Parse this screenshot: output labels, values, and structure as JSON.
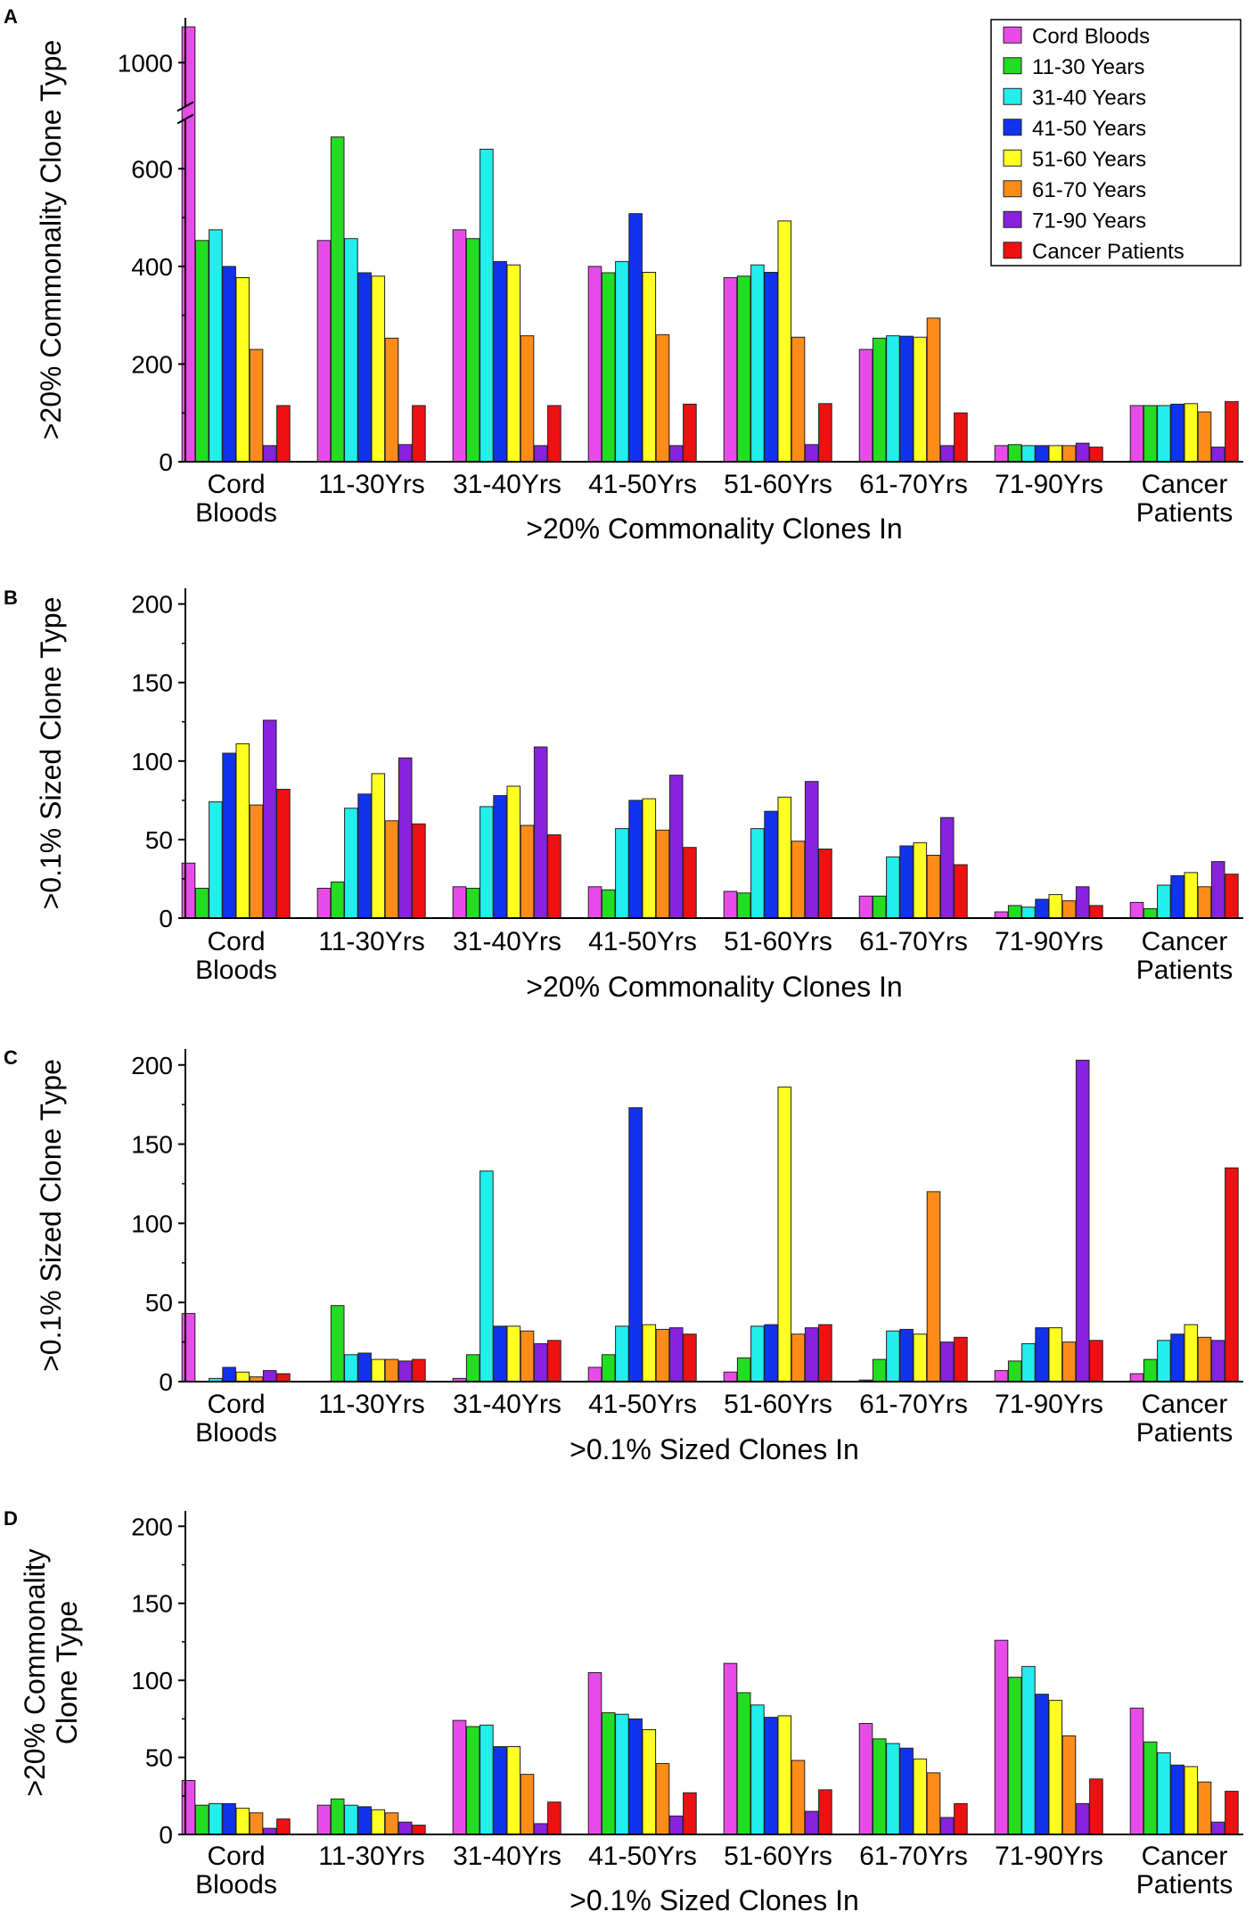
{
  "colors": {
    "Cord Bloods": "#e84ce8",
    "11-30 Years": "#22dd22",
    "31-40 Years": "#22eeee",
    "41-50 Years": "#1133ee",
    "51-60 Years": "#ffff22",
    "61-70 Years": "#ff8c1a",
    "71-90 Years": "#8822dd",
    "Cancer Patients": "#ee1111"
  },
  "chart_data": [
    {
      "panel": "A",
      "type": "bar",
      "title": "",
      "xlabel": ">20% Commonality Clones In",
      "ylabel": [
        ">20% Commonality Clone Type"
      ],
      "ylim": [
        0,
        1050
      ],
      "axis_break": {
        "from": 700,
        "to": 950
      },
      "yticks": [
        0,
        200,
        400,
        600,
        1000
      ],
      "categories": [
        [
          "Cord",
          "Bloods"
        ],
        [
          "11-30Yrs"
        ],
        [
          "31-40Yrs"
        ],
        [
          "41-50Yrs"
        ],
        [
          "51-60Yrs"
        ],
        [
          "61-70Yrs"
        ],
        [
          "71-90Yrs"
        ],
        [
          "Cancer",
          "Patients"
        ]
      ],
      "legend": {
        "position": "top-right",
        "entries": [
          "Cord Bloods",
          "11-30 Years",
          "31-40 Years",
          "41-50 Years",
          "51-60 Years",
          "61-70 Years",
          "71-90 Years",
          "Cancer Patients"
        ]
      },
      "series": [
        {
          "name": "Cord Bloods",
          "values": [
            1040,
            453,
            475,
            400,
            377,
            230,
            33,
            115
          ]
        },
        {
          "name": "11-30 Years",
          "values": [
            453,
            665,
            457,
            387,
            380,
            253,
            35,
            115
          ]
        },
        {
          "name": "31-40 Years",
          "values": [
            475,
            457,
            640,
            410,
            403,
            258,
            33,
            115
          ]
        },
        {
          "name": "41-50 Years",
          "values": [
            400,
            387,
            410,
            508,
            388,
            257,
            33,
            118
          ]
        },
        {
          "name": "51-60 Years",
          "values": [
            377,
            380,
            403,
            388,
            493,
            255,
            33,
            119
          ]
        },
        {
          "name": "61-70 Years",
          "values": [
            230,
            253,
            258,
            260,
            255,
            294,
            33,
            102
          ]
        },
        {
          "name": "71-90 Years",
          "values": [
            33,
            35,
            33,
            33,
            35,
            33,
            38,
            30
          ]
        },
        {
          "name": "Cancer Patients",
          "values": [
            115,
            115,
            115,
            118,
            119,
            100,
            30,
            123
          ]
        }
      ]
    },
    {
      "panel": "B",
      "type": "bar",
      "title": "",
      "xlabel": ">20% Commonality Clones In",
      "ylabel": [
        ">0.1% Sized Clone Type"
      ],
      "ylim": [
        0,
        210
      ],
      "yticks": [
        0,
        50,
        100,
        150,
        200
      ],
      "categories": [
        [
          "Cord",
          "Bloods"
        ],
        [
          "11-30Yrs"
        ],
        [
          "31-40Yrs"
        ],
        [
          "41-50Yrs"
        ],
        [
          "51-60Yrs"
        ],
        [
          "61-70Yrs"
        ],
        [
          "71-90Yrs"
        ],
        [
          "Cancer",
          "Patients"
        ]
      ],
      "series": [
        {
          "name": "Cord Bloods",
          "values": [
            35,
            19,
            20,
            20,
            17,
            14,
            4,
            10
          ]
        },
        {
          "name": "11-30 Years",
          "values": [
            19,
            23,
            19,
            18,
            16,
            14,
            8,
            6
          ]
        },
        {
          "name": "31-40 Years",
          "values": [
            74,
            70,
            71,
            57,
            57,
            39,
            7,
            21
          ]
        },
        {
          "name": "41-50 Years",
          "values": [
            105,
            79,
            78,
            75,
            68,
            46,
            12,
            27
          ]
        },
        {
          "name": "51-60 Years",
          "values": [
            111,
            92,
            84,
            76,
            77,
            48,
            15,
            29
          ]
        },
        {
          "name": "61-70 Years",
          "values": [
            72,
            62,
            59,
            56,
            49,
            40,
            11,
            20
          ]
        },
        {
          "name": "71-90 Years",
          "values": [
            126,
            102,
            109,
            91,
            87,
            64,
            20,
            36
          ]
        },
        {
          "name": "Cancer Patients",
          "values": [
            82,
            60,
            53,
            45,
            44,
            34,
            8,
            28
          ]
        }
      ]
    },
    {
      "panel": "C",
      "type": "bar",
      "title": "",
      "xlabel": ">0.1% Sized Clones In",
      "ylabel": [
        ">0.1% Sized Clone Type"
      ],
      "ylim": [
        0,
        210
      ],
      "yticks": [
        0,
        50,
        100,
        150,
        200
      ],
      "categories": [
        [
          "Cord",
          "Bloods"
        ],
        [
          "11-30Yrs"
        ],
        [
          "31-40Yrs"
        ],
        [
          "41-50Yrs"
        ],
        [
          "51-60Yrs"
        ],
        [
          "61-70Yrs"
        ],
        [
          "71-90Yrs"
        ],
        [
          "Cancer",
          "Patients"
        ]
      ],
      "series": [
        {
          "name": "Cord Bloods",
          "values": [
            43,
            0,
            2,
            9,
            6,
            1,
            7,
            5
          ]
        },
        {
          "name": "11-30 Years",
          "values": [
            0,
            48,
            17,
            17,
            15,
            14,
            13,
            14
          ]
        },
        {
          "name": "31-40 Years",
          "values": [
            2,
            17,
            133,
            35,
            35,
            32,
            24,
            26
          ]
        },
        {
          "name": "41-50 Years",
          "values": [
            9,
            18,
            35,
            173,
            36,
            33,
            34,
            30
          ]
        },
        {
          "name": "51-60 Years",
          "values": [
            6,
            14,
            35,
            36,
            186,
            30,
            34,
            36
          ]
        },
        {
          "name": "61-70 Years",
          "values": [
            3,
            14,
            32,
            33,
            30,
            120,
            25,
            28
          ]
        },
        {
          "name": "71-90 Years",
          "values": [
            7,
            13,
            24,
            34,
            34,
            25,
            203,
            26
          ]
        },
        {
          "name": "Cancer Patients",
          "values": [
            5,
            14,
            26,
            30,
            36,
            28,
            26,
            135
          ]
        }
      ]
    },
    {
      "panel": "D",
      "type": "bar",
      "title": "",
      "xlabel": ">0.1% Sized Clones In",
      "ylabel": [
        ">20% Commonality",
        "Clone Type"
      ],
      "ylim": [
        0,
        210
      ],
      "yticks": [
        0,
        50,
        100,
        150,
        200
      ],
      "categories": [
        [
          "Cord",
          "Bloods"
        ],
        [
          "11-30Yrs"
        ],
        [
          "31-40Yrs"
        ],
        [
          "41-50Yrs"
        ],
        [
          "51-60Yrs"
        ],
        [
          "61-70Yrs"
        ],
        [
          "71-90Yrs"
        ],
        [
          "Cancer",
          "Patients"
        ]
      ],
      "series": [
        {
          "name": "Cord Bloods",
          "values": [
            35,
            19,
            74,
            105,
            111,
            72,
            126,
            82
          ]
        },
        {
          "name": "11-30 Years",
          "values": [
            19,
            23,
            70,
            79,
            92,
            62,
            102,
            60
          ]
        },
        {
          "name": "31-40 Years",
          "values": [
            20,
            19,
            71,
            78,
            84,
            59,
            109,
            53
          ]
        },
        {
          "name": "41-50 Years",
          "values": [
            20,
            18,
            57,
            75,
            76,
            56,
            91,
            45
          ]
        },
        {
          "name": "51-60 Years",
          "values": [
            17,
            16,
            57,
            68,
            77,
            49,
            87,
            44
          ]
        },
        {
          "name": "61-70 Years",
          "values": [
            14,
            14,
            39,
            46,
            48,
            40,
            64,
            34
          ]
        },
        {
          "name": "71-90 Years",
          "values": [
            4,
            8,
            7,
            12,
            15,
            11,
            20,
            8
          ]
        },
        {
          "name": "Cancer Patients",
          "values": [
            10,
            6,
            21,
            27,
            29,
            20,
            36,
            28
          ]
        }
      ]
    }
  ]
}
